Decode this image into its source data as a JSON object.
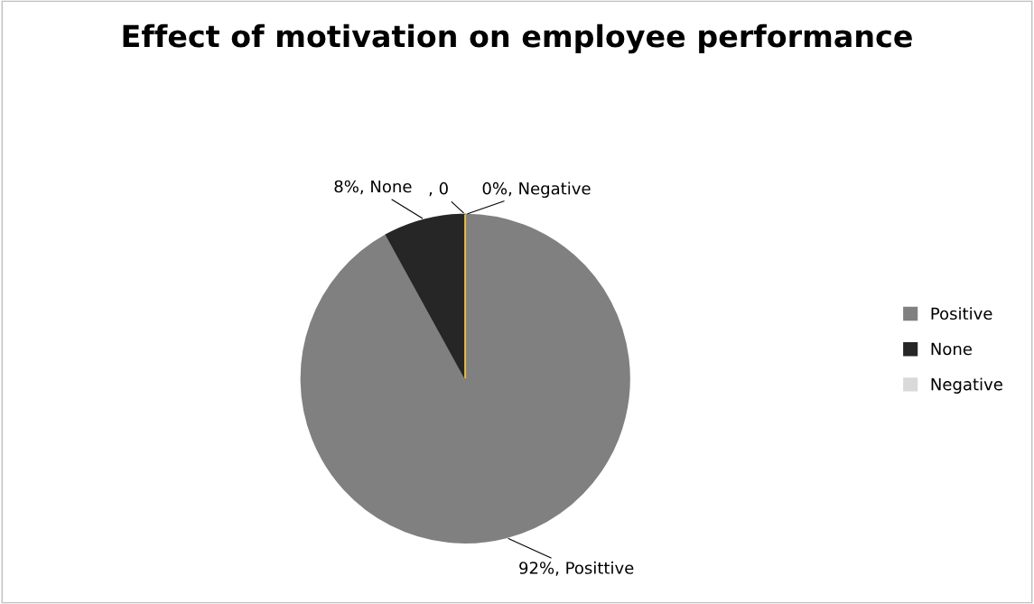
{
  "chart_data": {
    "type": "pie",
    "title": "Effect of motivation on employee performance",
    "categories": [
      "Positive",
      "None",
      "Negative",
      null
    ],
    "values": [
      92,
      8,
      0,
      0
    ],
    "colors": [
      "#808080",
      "#262626",
      "#d9d9d9",
      "#ffc000"
    ],
    "value_labels": [
      "92%, Posittive",
      "8%, None",
      "0%, Negative",
      ", 0"
    ],
    "legend": "right"
  }
}
